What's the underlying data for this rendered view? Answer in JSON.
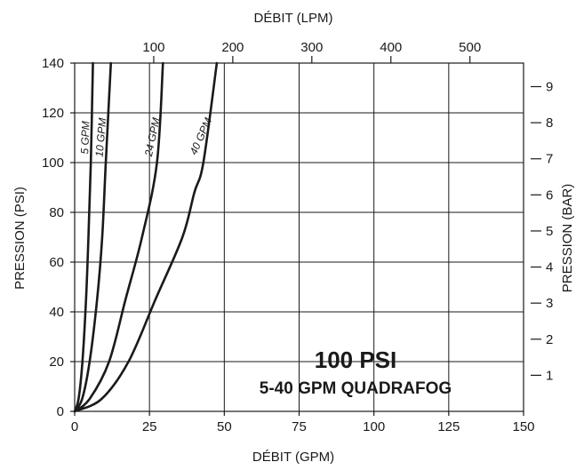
{
  "chart_data": {
    "type": "line",
    "title": "100 PSI",
    "subtitle": "5-40 GPM QUADRAFOG",
    "xlabel": "DÉBIT (GPM)",
    "ylabel": "PRESSION (PSI)",
    "x2label": "DÉBIT (LPM)",
    "y2label": "PRESSION (BAR)",
    "xlim": [
      0,
      150
    ],
    "ylim": [
      0,
      140
    ],
    "x_ticks": [
      0,
      25,
      50,
      75,
      100,
      125,
      150
    ],
    "y_ticks": [
      0,
      20,
      40,
      60,
      80,
      100,
      120,
      140
    ],
    "x2_ticks": [
      100,
      200,
      300,
      400,
      500
    ],
    "y2_ticks": [
      1,
      2,
      3,
      4,
      5,
      6,
      7,
      8,
      9
    ],
    "grid": true,
    "series": [
      {
        "name": "5 GPM",
        "x": [
          0,
          1.3,
          2.6,
          3.8,
          4.6,
          5.4,
          6.1
        ],
        "y": [
          0,
          5,
          20,
          45,
          70,
          100,
          140
        ]
      },
      {
        "name": "10 GPM",
        "x": [
          0,
          2.5,
          5,
          7.5,
          9.2,
          10.4,
          12.1
        ],
        "y": [
          0,
          5,
          20,
          45,
          70,
          100,
          140
        ]
      },
      {
        "name": "24 GPM",
        "x": [
          0,
          5,
          11.5,
          17,
          22.5,
          27.5,
          29.5
        ],
        "y": [
          0,
          5,
          20,
          45,
          70,
          100,
          140
        ]
      },
      {
        "name": "40 GPM",
        "x": [
          0,
          9,
          18,
          27,
          36,
          40,
          43,
          47.5
        ],
        "y": [
          0,
          5,
          20,
          45,
          70,
          88,
          100,
          140
        ]
      }
    ]
  }
}
